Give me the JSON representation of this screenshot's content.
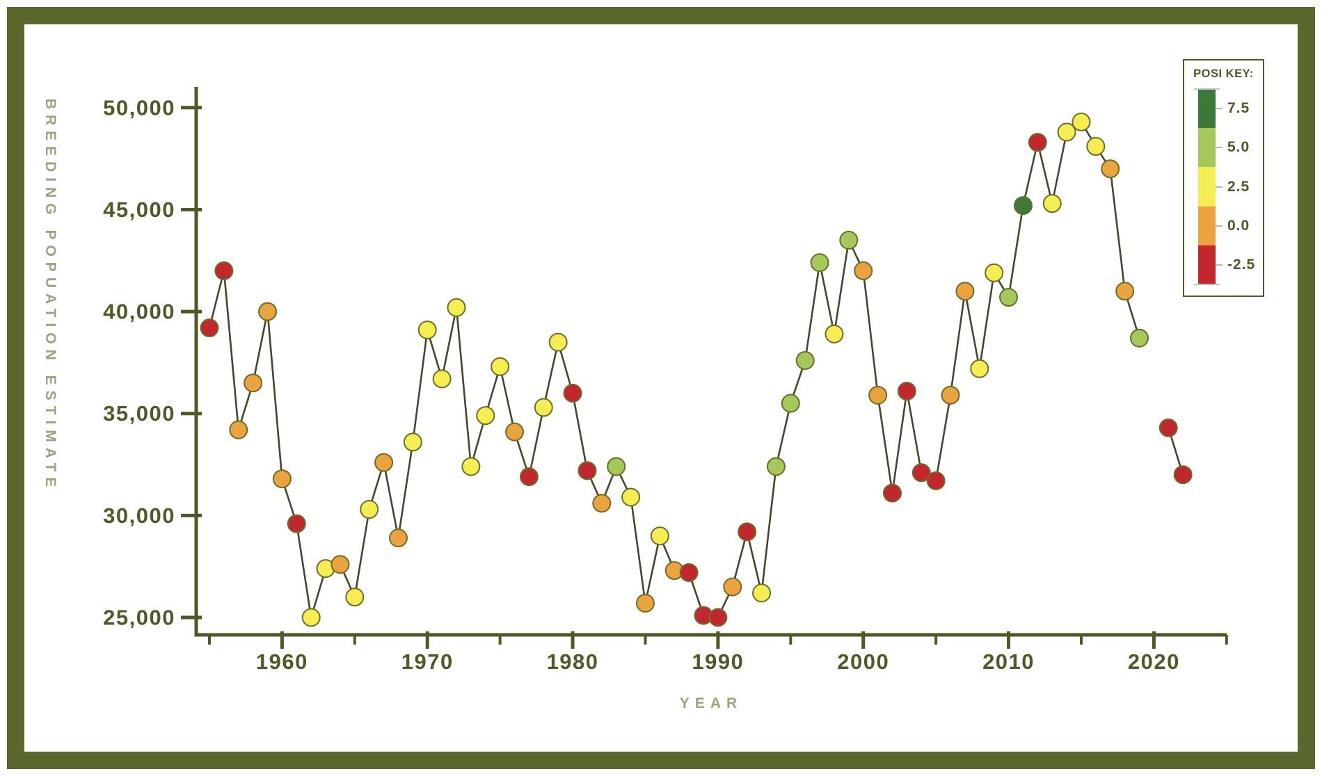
{
  "frame_color": "#5a682e",
  "chart_data": {
    "type": "line",
    "title": "",
    "xlabel": "YEAR",
    "ylabel": "BREEDING POPUATION ESTIMATE",
    "grid": false,
    "x_ticks_major": [
      1960,
      1970,
      1980,
      1990,
      2000,
      2010,
      2020
    ],
    "x_tick_labels": [
      "1960",
      "1970",
      "1980",
      "1990",
      "2000",
      "2010",
      "2020"
    ],
    "x_ticks_minor": [
      1955,
      1965,
      1975,
      1985,
      1995,
      2005,
      2015,
      2025
    ],
    "xlim": [
      1954,
      2025
    ],
    "y_ticks": [
      25000,
      30000,
      35000,
      40000,
      45000,
      50000
    ],
    "y_tick_labels": [
      "25,000",
      "30,000",
      "35,000",
      "40,000",
      "45,000",
      "50,000"
    ],
    "ylim": [
      25000,
      50000
    ],
    "gap_years": [
      2020
    ],
    "posi_colors": {
      "dark-green": "#3b7a39",
      "light-green": "#a4c95a",
      "yellow": "#f5ee52",
      "orange": "#eaa33d",
      "red": "#c2272d"
    },
    "line_color": "#40492a",
    "marker_stroke": "#6d6d2b",
    "axis_color": "#4d5a26",
    "legend": {
      "title": "POSI KEY:",
      "position": "top-right",
      "bands": [
        {
          "label": "7.5",
          "color_name": "dark-green",
          "color": "#3b7a39"
        },
        {
          "label": "5.0",
          "color_name": "light-green",
          "color": "#a4c95a"
        },
        {
          "label": "2.5",
          "color_name": "yellow",
          "color": "#f5ee52"
        },
        {
          "label": "0.0",
          "color_name": "orange",
          "color": "#eaa33d"
        },
        {
          "label": "-2.5",
          "color_name": "red",
          "color": "#c2272d"
        }
      ]
    },
    "points": [
      {
        "year": 1955,
        "value": 39200,
        "posi": "red"
      },
      {
        "year": 1956,
        "value": 42000,
        "posi": "red"
      },
      {
        "year": 1957,
        "value": 34200,
        "posi": "orange"
      },
      {
        "year": 1958,
        "value": 36500,
        "posi": "orange"
      },
      {
        "year": 1959,
        "value": 40000,
        "posi": "orange"
      },
      {
        "year": 1960,
        "value": 31800,
        "posi": "orange"
      },
      {
        "year": 1961,
        "value": 29600,
        "posi": "red"
      },
      {
        "year": 1962,
        "value": 25000,
        "posi": "yellow"
      },
      {
        "year": 1963,
        "value": 27400,
        "posi": "yellow"
      },
      {
        "year": 1964,
        "value": 27600,
        "posi": "orange"
      },
      {
        "year": 1965,
        "value": 26000,
        "posi": "yellow"
      },
      {
        "year": 1966,
        "value": 30300,
        "posi": "yellow"
      },
      {
        "year": 1967,
        "value": 32600,
        "posi": "orange"
      },
      {
        "year": 1968,
        "value": 28900,
        "posi": "orange"
      },
      {
        "year": 1969,
        "value": 33600,
        "posi": "yellow"
      },
      {
        "year": 1970,
        "value": 39100,
        "posi": "yellow"
      },
      {
        "year": 1971,
        "value": 36700,
        "posi": "yellow"
      },
      {
        "year": 1972,
        "value": 40200,
        "posi": "yellow"
      },
      {
        "year": 1973,
        "value": 32400,
        "posi": "yellow"
      },
      {
        "year": 1974,
        "value": 34900,
        "posi": "yellow"
      },
      {
        "year": 1975,
        "value": 37300,
        "posi": "yellow"
      },
      {
        "year": 1976,
        "value": 34100,
        "posi": "orange"
      },
      {
        "year": 1977,
        "value": 31900,
        "posi": "red"
      },
      {
        "year": 1978,
        "value": 35300,
        "posi": "yellow"
      },
      {
        "year": 1979,
        "value": 38500,
        "posi": "yellow"
      },
      {
        "year": 1980,
        "value": 36000,
        "posi": "red"
      },
      {
        "year": 1981,
        "value": 32200,
        "posi": "red"
      },
      {
        "year": 1982,
        "value": 30600,
        "posi": "orange"
      },
      {
        "year": 1983,
        "value": 32400,
        "posi": "light-green"
      },
      {
        "year": 1984,
        "value": 30900,
        "posi": "yellow"
      },
      {
        "year": 1985,
        "value": 25700,
        "posi": "orange"
      },
      {
        "year": 1986,
        "value": 29000,
        "posi": "yellow"
      },
      {
        "year": 1987,
        "value": 27300,
        "posi": "orange"
      },
      {
        "year": 1988,
        "value": 27200,
        "posi": "red"
      },
      {
        "year": 1989,
        "value": 25100,
        "posi": "red"
      },
      {
        "year": 1990,
        "value": 25000,
        "posi": "red"
      },
      {
        "year": 1991,
        "value": 26500,
        "posi": "orange"
      },
      {
        "year": 1992,
        "value": 29200,
        "posi": "red"
      },
      {
        "year": 1993,
        "value": 26200,
        "posi": "yellow"
      },
      {
        "year": 1994,
        "value": 32400,
        "posi": "light-green"
      },
      {
        "year": 1995,
        "value": 35500,
        "posi": "light-green"
      },
      {
        "year": 1996,
        "value": 37600,
        "posi": "light-green"
      },
      {
        "year": 1997,
        "value": 42400,
        "posi": "light-green"
      },
      {
        "year": 1998,
        "value": 38900,
        "posi": "yellow"
      },
      {
        "year": 1999,
        "value": 43500,
        "posi": "light-green"
      },
      {
        "year": 2000,
        "value": 42000,
        "posi": "orange"
      },
      {
        "year": 2001,
        "value": 35900,
        "posi": "orange"
      },
      {
        "year": 2002,
        "value": 31100,
        "posi": "red"
      },
      {
        "year": 2003,
        "value": 36100,
        "posi": "red"
      },
      {
        "year": 2004,
        "value": 32100,
        "posi": "red"
      },
      {
        "year": 2005,
        "value": 31700,
        "posi": "red"
      },
      {
        "year": 2006,
        "value": 35900,
        "posi": "orange"
      },
      {
        "year": 2007,
        "value": 41000,
        "posi": "orange"
      },
      {
        "year": 2008,
        "value": 37200,
        "posi": "yellow"
      },
      {
        "year": 2009,
        "value": 41900,
        "posi": "yellow"
      },
      {
        "year": 2010,
        "value": 40700,
        "posi": "light-green"
      },
      {
        "year": 2011,
        "value": 45200,
        "posi": "dark-green"
      },
      {
        "year": 2012,
        "value": 48300,
        "posi": "red"
      },
      {
        "year": 2013,
        "value": 45300,
        "posi": "yellow"
      },
      {
        "year": 2014,
        "value": 48800,
        "posi": "yellow"
      },
      {
        "year": 2015,
        "value": 49300,
        "posi": "yellow"
      },
      {
        "year": 2016,
        "value": 48100,
        "posi": "yellow"
      },
      {
        "year": 2017,
        "value": 47000,
        "posi": "orange"
      },
      {
        "year": 2018,
        "value": 41000,
        "posi": "orange"
      },
      {
        "year": 2019,
        "value": 38700,
        "posi": "light-green"
      },
      {
        "year": 2021,
        "value": 34300,
        "posi": "red"
      },
      {
        "year": 2022,
        "value": 32000,
        "posi": "red"
      }
    ]
  }
}
